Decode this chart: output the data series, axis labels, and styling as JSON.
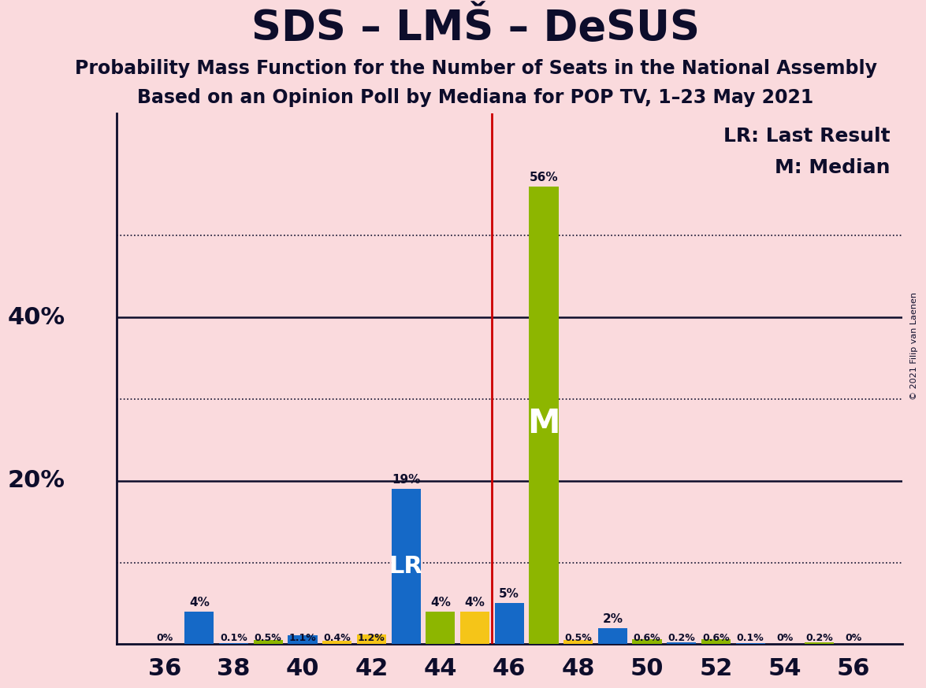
{
  "title": "SDS – LMŠ – DeSUS",
  "subtitle1": "Probability Mass Function for the Number of Seats in the National Assembly",
  "subtitle2": "Based on an Opinion Poll by Mediana for POP TV, 1–23 May 2021",
  "copyright": "© 2021 Filip van Laenen",
  "background_color": "#fadadd",
  "bar_data": [
    {
      "seat": 36,
      "value": 0.0,
      "color": "#1569C7"
    },
    {
      "seat": 37,
      "value": 0.04,
      "color": "#1569C7"
    },
    {
      "seat": 38,
      "value": 0.001,
      "color": "#1569C7"
    },
    {
      "seat": 39,
      "value": 0.005,
      "color": "#8DB600"
    },
    {
      "seat": 40,
      "value": 0.011,
      "color": "#1569C7"
    },
    {
      "seat": 41,
      "value": 0.004,
      "color": "#F5C518"
    },
    {
      "seat": 42,
      "value": 0.012,
      "color": "#F5C518"
    },
    {
      "seat": 43,
      "value": 0.19,
      "color": "#1569C7"
    },
    {
      "seat": 44,
      "value": 0.04,
      "color": "#8DB600"
    },
    {
      "seat": 45,
      "value": 0.04,
      "color": "#F5C518"
    },
    {
      "seat": 46,
      "value": 0.05,
      "color": "#1569C7"
    },
    {
      "seat": 47,
      "value": 0.56,
      "color": "#8DB600"
    },
    {
      "seat": 48,
      "value": 0.005,
      "color": "#F5C518"
    },
    {
      "seat": 49,
      "value": 0.02,
      "color": "#1569C7"
    },
    {
      "seat": 50,
      "value": 0.006,
      "color": "#8DB600"
    },
    {
      "seat": 51,
      "value": 0.002,
      "color": "#1569C7"
    },
    {
      "seat": 52,
      "value": 0.006,
      "color": "#8DB600"
    },
    {
      "seat": 53,
      "value": 0.001,
      "color": "#1569C7"
    },
    {
      "seat": 54,
      "value": 0.0,
      "color": "#1569C7"
    },
    {
      "seat": 55,
      "value": 0.002,
      "color": "#8DB600"
    },
    {
      "seat": 56,
      "value": 0.0,
      "color": "#1569C7"
    }
  ],
  "lr_seat": 43,
  "median_seat": 47,
  "vline_x": 45.5,
  "ylim": [
    0,
    0.65
  ],
  "xlim": [
    34.6,
    57.4
  ],
  "xticks": [
    36,
    38,
    40,
    42,
    44,
    46,
    48,
    50,
    52,
    54,
    56
  ],
  "legend_lr": "LR: Last Result",
  "legend_m": "M: Median",
  "bar_width": 0.85,
  "annotations": {
    "36": "0%",
    "37": "4%",
    "38": "0.1%",
    "39": "0.5%",
    "40": "1.1%",
    "41": "0.4%",
    "42": "1.2%",
    "43": "19%",
    "44": "4%",
    "45": "4%",
    "46": "5%",
    "47": "56%",
    "48": "0.5%",
    "49": "2%",
    "50": "0.6%",
    "51": "0.2%",
    "52": "0.6%",
    "53": "0.1%",
    "54": "0%",
    "55": "0.2%",
    "56": "0%"
  },
  "solid_hlines": [
    0.2,
    0.4
  ],
  "dotted_hlines": [
    0.1,
    0.3,
    0.5
  ],
  "ylabel_positions": [
    [
      0.2,
      "20%"
    ],
    [
      0.4,
      "40%"
    ]
  ],
  "title_fontsize": 38,
  "subtitle_fontsize": 17,
  "tick_fontsize": 22,
  "ylabel_fontsize": 22,
  "annotation_fontsize_small": 9,
  "annotation_fontsize_large": 11,
  "legend_fontsize": 18,
  "lr_label_fontsize": 22,
  "m_label_fontsize": 30,
  "copyright_fontsize": 8
}
